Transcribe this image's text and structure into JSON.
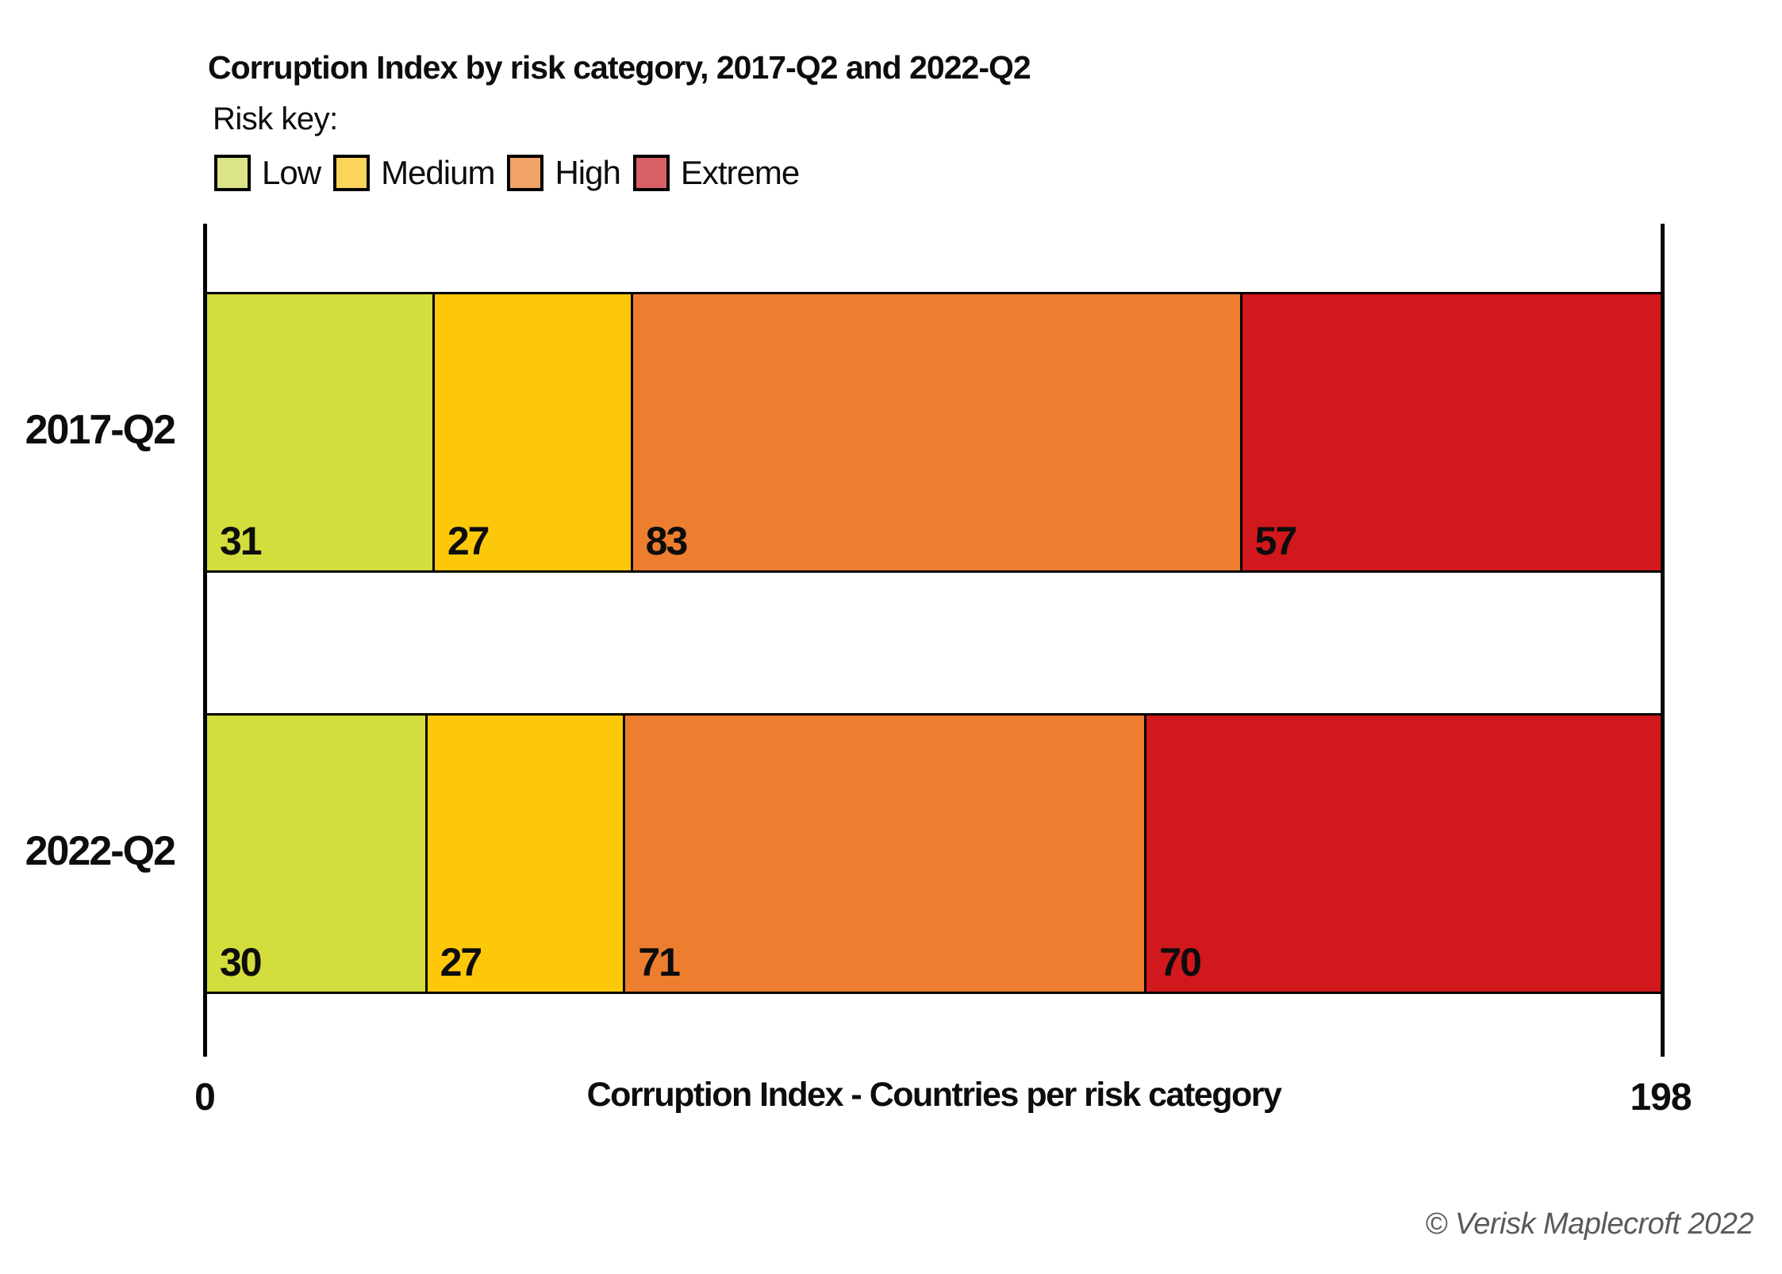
{
  "header": {
    "title": "Corruption Index by risk category, 2017-Q2 and 2022-Q2",
    "risk_key_label": "Risk key:"
  },
  "legend": {
    "position": "top-left",
    "items": [
      {
        "id": "low",
        "label": "Low",
        "swatch_color": "#dce489"
      },
      {
        "id": "medium",
        "label": "Medium",
        "swatch_color": "#fcd45c"
      },
      {
        "id": "high",
        "label": "High",
        "swatch_color": "#f1a368"
      },
      {
        "id": "extreme",
        "label": "Extreme",
        "swatch_color": "#d95f66"
      }
    ]
  },
  "chart_data": {
    "type": "bar",
    "orientation": "horizontal",
    "stacked": true,
    "title": "Corruption Index by risk category, 2017-Q2 and 2022-Q2",
    "categories": [
      "2017-Q2",
      "2022-Q2"
    ],
    "series": [
      {
        "name": "Low",
        "color": "#d3dd3d",
        "values": [
          31,
          30
        ]
      },
      {
        "name": "Medium",
        "color": "#fec80a",
        "values": [
          27,
          27
        ]
      },
      {
        "name": "High",
        "color": "#ed7d2f",
        "values": [
          83,
          71
        ]
      },
      {
        "name": "Extreme",
        "color": "#d1181d",
        "values": [
          57,
          70
        ]
      }
    ],
    "totals": [
      198,
      198
    ],
    "xlim": [
      0,
      198
    ],
    "x_ticks": [
      "0",
      "198"
    ],
    "xlabel": "Corruption Index - Countries per risk category",
    "grid": false,
    "value_labels": "inside-bottom-left",
    "bar_border_color": "#000000",
    "axis_color": "#000000"
  },
  "footer": {
    "copyright": "© Verisk Maplecroft 2022"
  }
}
